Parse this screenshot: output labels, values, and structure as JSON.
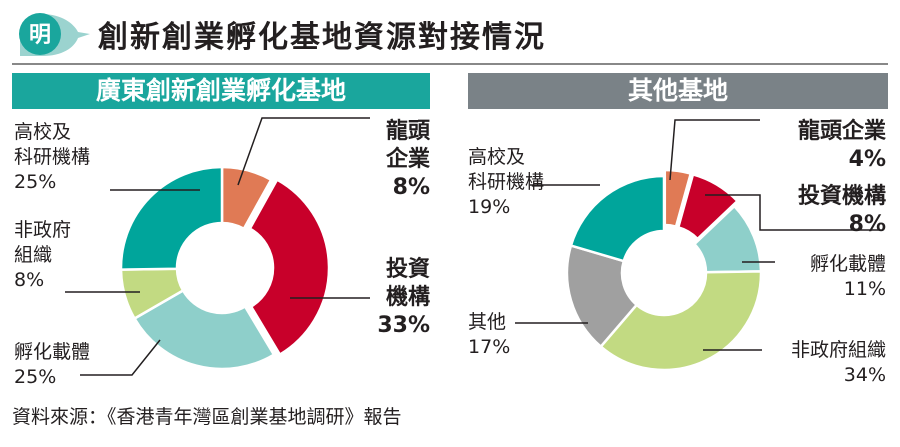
{
  "header": {
    "logo_char": "明",
    "title": "創新創業孵化基地資源對接情況"
  },
  "source": "資料來源：《香港青年灣區創業基地調研》報告",
  "chart_data": [
    {
      "type": "pie",
      "donut": true,
      "title": "廣東創新創業孵化基地",
      "unit": "%",
      "slices": [
        {
          "label": "龍頭企業",
          "display": "龍頭\n企業",
          "value": 8,
          "color": "#e07a55",
          "emphasis": true,
          "exploded": false
        },
        {
          "label": "投資機構",
          "display": "投資\n機構",
          "value": 33,
          "color": "#c8002a",
          "emphasis": true,
          "exploded": true
        },
        {
          "label": "孵化載體",
          "display": "孵化載體",
          "value": 25,
          "color": "#8ecfca",
          "emphasis": false,
          "exploded": false
        },
        {
          "label": "非政府組織",
          "display": "非政府\n組織",
          "value": 8,
          "color": "#c2da82",
          "emphasis": false,
          "exploded": false
        },
        {
          "label": "高校及科研機構",
          "display": "高校及\n科研機構",
          "value": 25,
          "color": "#00a59b",
          "emphasis": false,
          "exploded": false
        }
      ]
    },
    {
      "type": "pie",
      "donut": true,
      "title": "其他基地",
      "unit": "%",
      "slices": [
        {
          "label": "龍頭企業",
          "display": "龍頭企業",
          "value": 4,
          "color": "#e07a55",
          "emphasis": true,
          "exploded": true
        },
        {
          "label": "投資機構",
          "display": "投資機構",
          "value": 8,
          "color": "#c8002a",
          "emphasis": true,
          "exploded": true
        },
        {
          "label": "孵化載體",
          "display": "孵化載體",
          "value": 11,
          "color": "#8ecfca",
          "emphasis": false,
          "exploded": false
        },
        {
          "label": "非政府組織",
          "display": "非政府組織",
          "value": 34,
          "color": "#c2da82",
          "emphasis": false,
          "exploded": false
        },
        {
          "label": "其他",
          "display": "其他",
          "value": 17,
          "color": "#a0a0a0",
          "emphasis": false,
          "exploded": false
        },
        {
          "label": "高校及科研機構",
          "display": "高校及\n科研機構",
          "value": 19,
          "color": "#00a59b",
          "emphasis": false,
          "exploded": false
        }
      ]
    }
  ],
  "colors": {
    "panel_left": "#1aa69d",
    "panel_right": "#7a8287",
    "logo": "#1aa69d"
  }
}
